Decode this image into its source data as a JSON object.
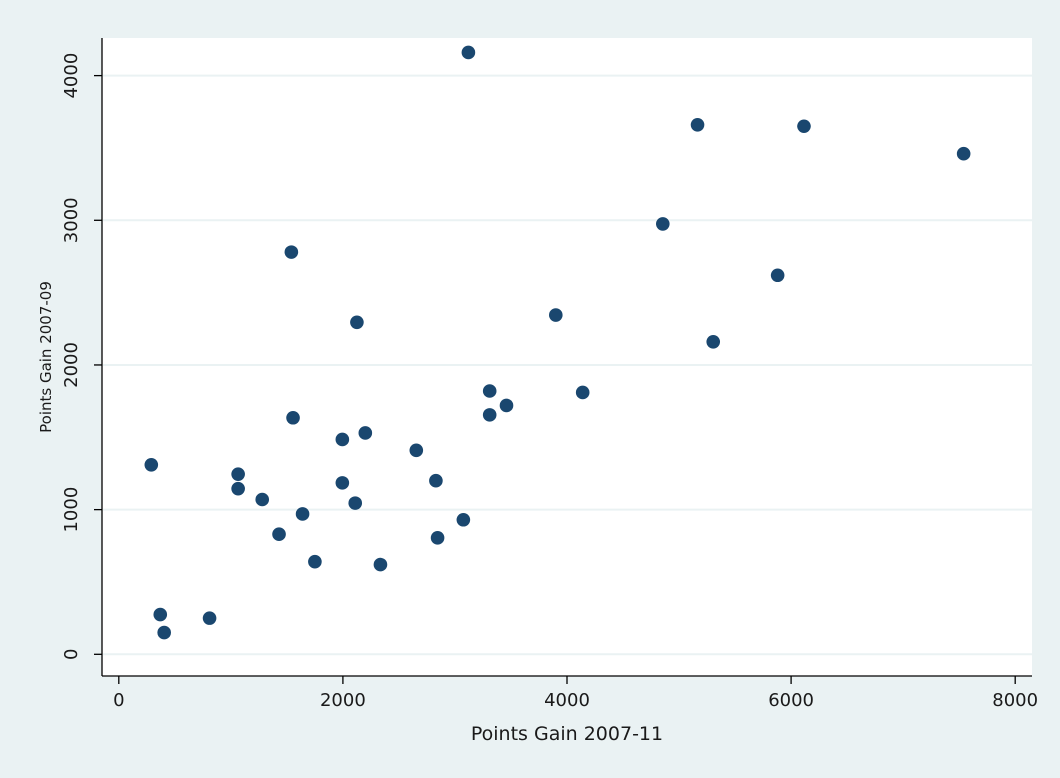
{
  "chart_data": {
    "type": "scatter",
    "title": "",
    "xlabel": "Points Gain 2007-11",
    "ylabel": "Points Gain 2007-09",
    "xlim": [
      -150,
      8150
    ],
    "ylim": [
      -150,
      4260
    ],
    "x_ticks": [
      0,
      2000,
      4000,
      6000,
      8000
    ],
    "y_ticks": [
      0,
      1000,
      2000,
      3000,
      4000
    ],
    "x_tick_labels": [
      "0",
      "2000",
      "4000",
      "6000",
      "8000"
    ],
    "y_tick_labels": [
      "0",
      "1000",
      "2000",
      "3000",
      "4000"
    ],
    "grid": "horizontal",
    "legend": "none",
    "colors": {
      "background": "#eaf2f3",
      "plot_area": "#ffffff",
      "gridline": "#eaf2f3",
      "marker": "#1a476f",
      "axis": "#000000"
    },
    "points": [
      {
        "x": 290,
        "y": 1310
      },
      {
        "x": 370,
        "y": 275
      },
      {
        "x": 405,
        "y": 150
      },
      {
        "x": 810,
        "y": 250
      },
      {
        "x": 1065,
        "y": 1245
      },
      {
        "x": 1065,
        "y": 1145
      },
      {
        "x": 1280,
        "y": 1070
      },
      {
        "x": 1430,
        "y": 830
      },
      {
        "x": 1540,
        "y": 2780
      },
      {
        "x": 1555,
        "y": 1635
      },
      {
        "x": 1640,
        "y": 970
      },
      {
        "x": 1750,
        "y": 640
      },
      {
        "x": 1995,
        "y": 1485
      },
      {
        "x": 1995,
        "y": 1185
      },
      {
        "x": 2110,
        "y": 1045
      },
      {
        "x": 2125,
        "y": 2295
      },
      {
        "x": 2200,
        "y": 1530
      },
      {
        "x": 2335,
        "y": 620
      },
      {
        "x": 2655,
        "y": 1410
      },
      {
        "x": 2830,
        "y": 1200
      },
      {
        "x": 2845,
        "y": 805
      },
      {
        "x": 3075,
        "y": 930
      },
      {
        "x": 3120,
        "y": 4160
      },
      {
        "x": 3310,
        "y": 1820
      },
      {
        "x": 3310,
        "y": 1655
      },
      {
        "x": 3460,
        "y": 1720
      },
      {
        "x": 3900,
        "y": 2345
      },
      {
        "x": 4140,
        "y": 1810
      },
      {
        "x": 4855,
        "y": 2975
      },
      {
        "x": 5165,
        "y": 3660
      },
      {
        "x": 5305,
        "y": 2160
      },
      {
        "x": 5880,
        "y": 2620
      },
      {
        "x": 6115,
        "y": 3650
      },
      {
        "x": 7540,
        "y": 3460
      }
    ]
  }
}
